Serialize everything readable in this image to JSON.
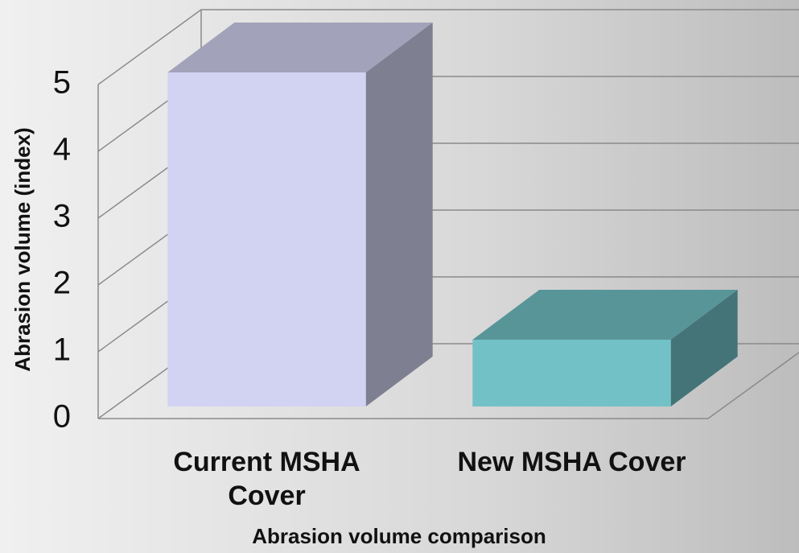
{
  "chart_data": {
    "type": "bar3d",
    "categories": [
      "Current MSHA Cover",
      "New MSHA Cover"
    ],
    "values": [
      5,
      1
    ],
    "colors": [
      "#d2d3f2",
      "#72c1c7"
    ],
    "ylabel": "Abrasion volume (index)",
    "xlabel": "Abrasion volume comparison",
    "ylim": [
      0,
      5
    ],
    "yticks": [
      0,
      1,
      2,
      3,
      4,
      5
    ],
    "grid": true
  }
}
